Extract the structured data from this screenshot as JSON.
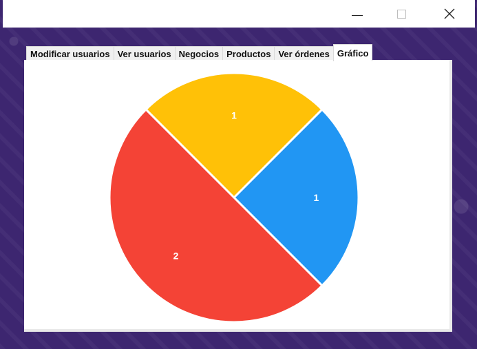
{
  "window": {
    "minimize_icon": "minimize-icon",
    "maximize_icon": "maximize-icon",
    "close_icon": "close-icon"
  },
  "tabs": [
    {
      "label": "Modificar usuarios",
      "active": false
    },
    {
      "label": "Ver usuarios",
      "active": false
    },
    {
      "label": "Negocios",
      "active": false
    },
    {
      "label": "Productos",
      "active": false
    },
    {
      "label": "Ver órdenes",
      "active": false
    },
    {
      "label": "Gráfico",
      "active": true
    }
  ],
  "chart_data": {
    "type": "pie",
    "slices": [
      {
        "value": 1,
        "label": "1",
        "color": "#FFC107"
      },
      {
        "value": 1,
        "label": "1",
        "color": "#2196F3"
      },
      {
        "value": 2,
        "label": "2",
        "color": "#F44336"
      }
    ],
    "title": "",
    "legend": "none"
  }
}
